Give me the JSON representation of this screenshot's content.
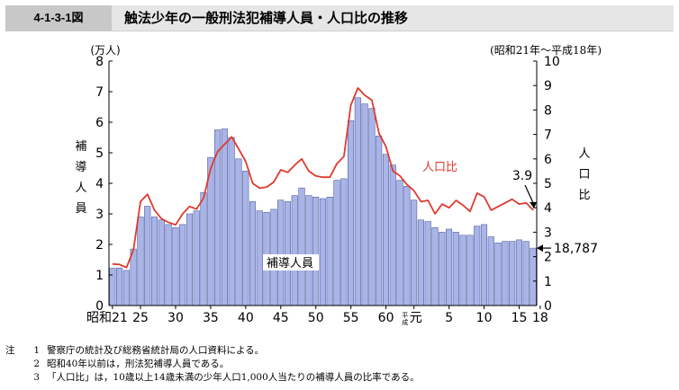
{
  "header": {
    "figure_id": "4-1-3-1図",
    "title": "触法少年の一般刑法犯補導人員・人口比の推移"
  },
  "chart_data": {
    "type": "bar+line",
    "period_note": "(昭和21年～平成18年)",
    "left_axis": {
      "unit": "(万人)",
      "label": "補導人員",
      "range": [
        0,
        8
      ],
      "ticks": [
        "0",
        "1",
        "2",
        "3",
        "4",
        "5",
        "6",
        "7",
        "8"
      ]
    },
    "right_axis": {
      "label": "人口比",
      "range": [
        0,
        10
      ],
      "ticks": [
        "0",
        "1",
        "2",
        "3",
        "4",
        "5",
        "6",
        "7",
        "8",
        "9",
        "10"
      ]
    },
    "x_labels": [
      {
        "index": 0,
        "text": "昭和21"
      },
      {
        "index": 4,
        "text": "25"
      },
      {
        "index": 9,
        "text": "30"
      },
      {
        "index": 14,
        "text": "35"
      },
      {
        "index": 19,
        "text": "40"
      },
      {
        "index": 24,
        "text": "45"
      },
      {
        "index": 29,
        "text": "50"
      },
      {
        "index": 34,
        "text": "55"
      },
      {
        "index": 39,
        "text": "60"
      },
      {
        "index": 43,
        "text": "平成元"
      },
      {
        "index": 48,
        "text": "5"
      },
      {
        "index": 53,
        "text": "10"
      },
      {
        "index": 58,
        "text": "15"
      },
      {
        "index": 61,
        "text": "18"
      }
    ],
    "x_label_era_mark": "平成",
    "x_label_first_heisei": "元",
    "years": [
      "昭和21",
      "22",
      "23",
      "24",
      "25",
      "26",
      "27",
      "28",
      "29",
      "30",
      "31",
      "32",
      "33",
      "34",
      "35",
      "36",
      "37",
      "38",
      "39",
      "40",
      "41",
      "42",
      "43",
      "44",
      "45",
      "46",
      "47",
      "48",
      "49",
      "50",
      "51",
      "52",
      "53",
      "54",
      "55",
      "56",
      "57",
      "58",
      "59",
      "60",
      "61",
      "62",
      "63",
      "平成元",
      "2",
      "3",
      "4",
      "5",
      "6",
      "7",
      "8",
      "9",
      "10",
      "11",
      "12",
      "13",
      "14",
      "15",
      "16",
      "17",
      "18"
    ],
    "series": [
      {
        "name": "補導人員",
        "type": "bar",
        "unit": "万人",
        "color": "#a9b5e8",
        "values": [
          1.22,
          1.23,
          1.15,
          1.85,
          2.9,
          3.25,
          2.9,
          2.8,
          2.65,
          2.55,
          2.65,
          3.0,
          3.1,
          3.7,
          4.85,
          5.75,
          5.78,
          5.5,
          4.8,
          4.4,
          3.4,
          3.1,
          3.05,
          3.15,
          3.45,
          3.4,
          3.6,
          3.85,
          3.6,
          3.55,
          3.5,
          3.55,
          4.1,
          4.15,
          6.05,
          6.8,
          6.6,
          6.45,
          5.55,
          4.95,
          4.6,
          4.1,
          3.9,
          3.45,
          2.8,
          2.75,
          2.55,
          2.4,
          2.5,
          2.4,
          2.3,
          2.3,
          2.6,
          2.65,
          2.25,
          2.05,
          2.1,
          2.1,
          2.15,
          2.1,
          1.88
        ]
      },
      {
        "name": "人口比",
        "type": "line",
        "color": "#e03a2f",
        "values": [
          1.7,
          1.68,
          1.55,
          2.3,
          4.25,
          4.55,
          3.9,
          3.55,
          3.4,
          3.3,
          3.75,
          4.05,
          3.95,
          4.4,
          5.6,
          6.3,
          6.6,
          6.9,
          6.4,
          5.9,
          5.0,
          4.8,
          4.85,
          5.05,
          5.55,
          5.45,
          5.75,
          6.0,
          5.5,
          5.3,
          5.25,
          5.25,
          5.8,
          6.1,
          8.2,
          8.9,
          8.6,
          8.4,
          7.05,
          6.5,
          5.5,
          5.3,
          4.95,
          4.7,
          4.25,
          4.3,
          3.75,
          4.15,
          4.0,
          4.3,
          4.1,
          3.85,
          4.6,
          4.45,
          3.9,
          4.05,
          4.2,
          4.35,
          4.15,
          4.2,
          3.9
        ]
      }
    ],
    "annotations": {
      "line_label": "人口比",
      "bar_label": "補導人員",
      "last_ratio": "3.9",
      "last_count": "18,787"
    }
  },
  "notes": [
    {
      "prefix": "注",
      "num": "1",
      "text": "警察庁の統計及び総務省統計局の人口資料による。"
    },
    {
      "prefix": "",
      "num": "2",
      "text": "昭和40年以前は，刑法犯補導人員である。"
    },
    {
      "prefix": "",
      "num": "3",
      "text": "「人口比」は，10歳以上14歳未満の少年人口1,000人当たりの補導人員の比率である。"
    }
  ]
}
